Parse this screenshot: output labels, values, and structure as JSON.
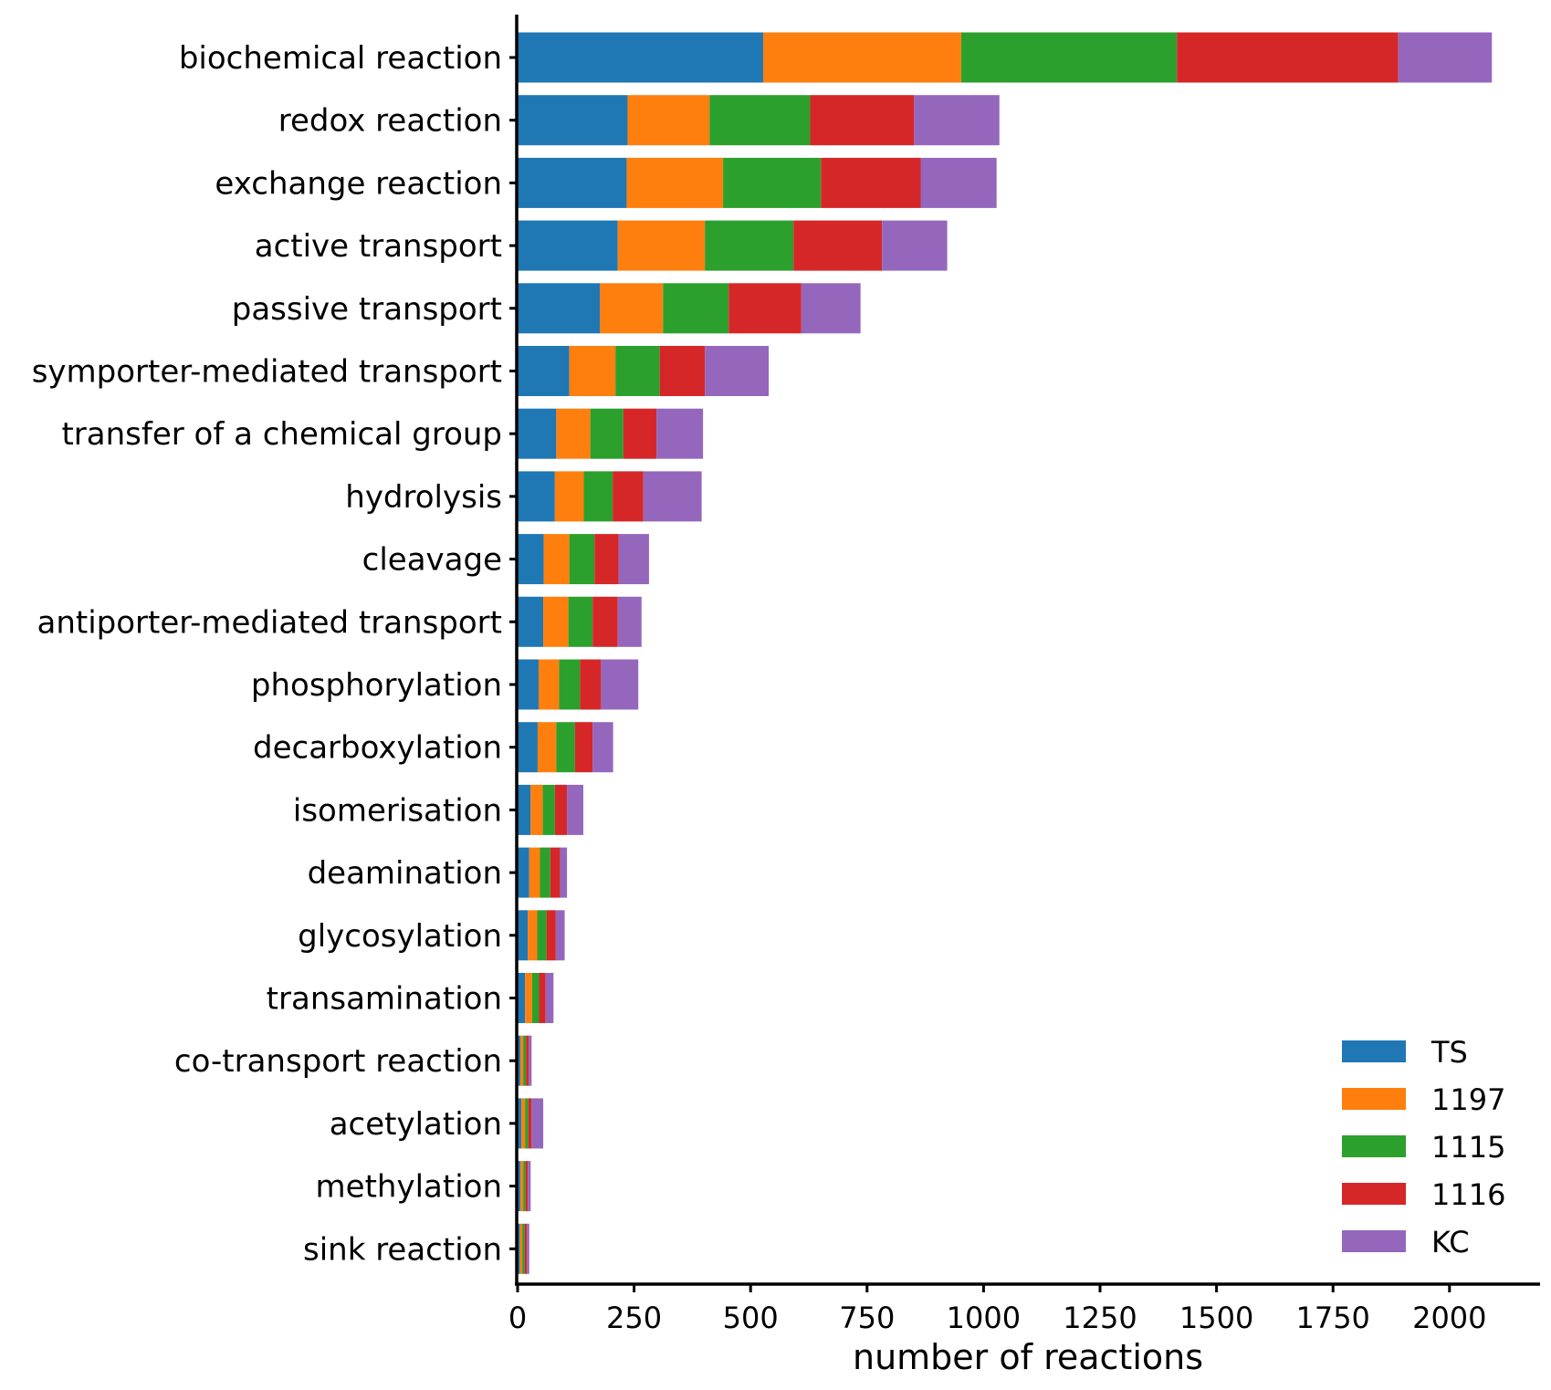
{
  "chart_data": {
    "type": "bar",
    "orientation": "horizontal",
    "stacked": true,
    "title": "",
    "xlabel": "number of reactions",
    "ylabel": "",
    "xlim": [
      0,
      2200
    ],
    "xticks": [
      0,
      250,
      500,
      750,
      1000,
      1250,
      1500,
      1750,
      2000
    ],
    "grid": false,
    "legend_position": "bottom-right",
    "categories": [
      "biochemical reaction",
      "redox reaction",
      "exchange reaction",
      "active transport",
      "passive transport",
      "symporter-mediated transport",
      "transfer of a chemical group",
      "hydrolysis",
      "cleavage",
      "antiporter-mediated transport",
      "phosphorylation",
      "decarboxylation",
      "isomerisation",
      "deamination",
      "glycosylation",
      "transamination",
      "co-transport reaction",
      "acetylation",
      "methylation",
      "sink reaction"
    ],
    "series": [
      {
        "name": "TS",
        "color": "#1f77b4",
        "values": [
          527,
          236,
          234,
          215,
          177,
          111,
          83,
          80,
          56,
          55,
          45,
          43,
          28,
          25,
          22,
          16,
          6,
          8,
          6,
          5
        ]
      },
      {
        "name": "1197",
        "color": "#ff7f0e",
        "values": [
          425,
          176,
          207,
          187,
          135,
          99,
          73,
          62,
          55,
          54,
          44,
          40,
          26,
          23,
          20,
          15,
          6,
          8,
          6,
          5
        ]
      },
      {
        "name": "1115",
        "color": "#2ca02c",
        "values": [
          463,
          216,
          210,
          190,
          141,
          95,
          71,
          62,
          54,
          52,
          45,
          40,
          26,
          22,
          20,
          15,
          6,
          7,
          5,
          5
        ]
      },
      {
        "name": "1116",
        "color": "#d62728",
        "values": [
          475,
          223,
          214,
          190,
          156,
          97,
          71,
          66,
          52,
          54,
          45,
          38,
          26,
          21,
          20,
          14,
          6,
          7,
          5,
          5
        ]
      },
      {
        "name": "KC",
        "color": "#9467bd",
        "values": [
          201,
          183,
          163,
          140,
          127,
          137,
          100,
          125,
          65,
          51,
          80,
          44,
          35,
          15,
          19,
          17,
          6,
          25,
          6,
          5
        ]
      }
    ]
  }
}
